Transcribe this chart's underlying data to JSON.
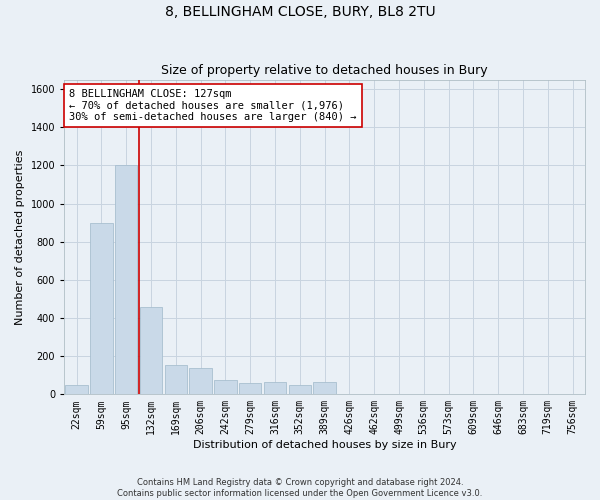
{
  "title": "8, BELLINGHAM CLOSE, BURY, BL8 2TU",
  "subtitle": "Size of property relative to detached houses in Bury",
  "xlabel": "Distribution of detached houses by size in Bury",
  "ylabel": "Number of detached properties",
  "bins": [
    "22sqm",
    "59sqm",
    "95sqm",
    "132sqm",
    "169sqm",
    "206sqm",
    "242sqm",
    "279sqm",
    "316sqm",
    "352sqm",
    "389sqm",
    "426sqm",
    "462sqm",
    "499sqm",
    "536sqm",
    "573sqm",
    "609sqm",
    "646sqm",
    "683sqm",
    "719sqm",
    "756sqm"
  ],
  "bar_heights": [
    50,
    900,
    1200,
    460,
    155,
    140,
    75,
    60,
    65,
    50,
    65,
    0,
    0,
    0,
    0,
    0,
    0,
    0,
    0,
    0,
    0
  ],
  "bar_color": "#c9d9e8",
  "bar_edge_color": "#a8bfd0",
  "grid_color": "#c8d4e0",
  "background_color": "#eaf0f6",
  "vline_color": "#cc0000",
  "annotation_text": "8 BELLINGHAM CLOSE: 127sqm\n← 70% of detached houses are smaller (1,976)\n30% of semi-detached houses are larger (840) →",
  "annotation_box_color": "#ffffff",
  "annotation_box_edge": "#cc0000",
  "ylim": [
    0,
    1650
  ],
  "yticks": [
    0,
    200,
    400,
    600,
    800,
    1000,
    1200,
    1400,
    1600
  ],
  "footer": "Contains HM Land Registry data © Crown copyright and database right 2024.\nContains public sector information licensed under the Open Government Licence v3.0.",
  "title_fontsize": 10,
  "subtitle_fontsize": 9,
  "axis_label_fontsize": 8,
  "tick_fontsize": 7,
  "annotation_fontsize": 7.5,
  "footer_fontsize": 6
}
